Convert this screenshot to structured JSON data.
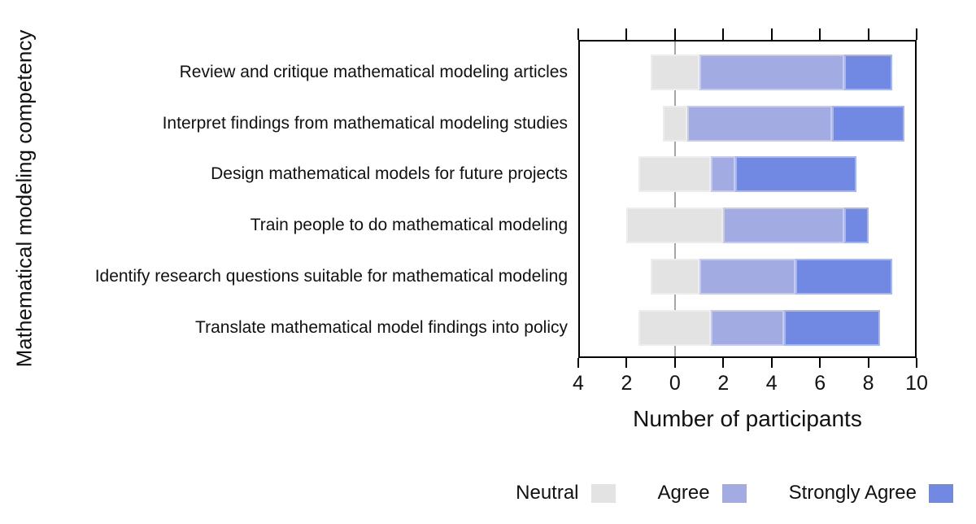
{
  "chart_data": {
    "type": "bar",
    "variant": "diverging-stacked-likert",
    "orientation": "horizontal",
    "xlabel": "Number of participants",
    "ylabel": "Mathematical modeling competency",
    "neutral_centered_on_zero": true,
    "x_axis": {
      "range": [
        -4,
        10
      ],
      "tick_values": [
        -4,
        -2,
        0,
        2,
        4,
        6,
        8,
        10
      ],
      "tick_labels": [
        "4",
        "2",
        "0",
        "2",
        "4",
        "6",
        "8",
        "10"
      ],
      "top_axis_mirrored_unlabeled_ticks": true,
      "grid": "zero-line-only"
    },
    "categories": [
      "Review and critique mathematical modeling articles",
      "Interpret findings from mathematical modeling studies",
      "Design mathematical models for future projects",
      "Train people to do mathematical modeling",
      "Identify research questions suitable for mathematical modeling",
      "Translate mathematical model findings into policy"
    ],
    "series": [
      {
        "name": "Neutral",
        "color": "#e3e3e3",
        "values": [
          2,
          1,
          3,
          4,
          2,
          3
        ]
      },
      {
        "name": "Agree",
        "color": "#a2ace2",
        "values": [
          6,
          6,
          1,
          5,
          4,
          3
        ]
      },
      {
        "name": "Strongly Agree",
        "color": "#7289e4",
        "values": [
          2,
          3,
          5,
          1,
          4,
          4
        ]
      }
    ],
    "legend": {
      "position": "bottom-right",
      "order": [
        "Neutral",
        "Agree",
        "Strongly Agree"
      ]
    }
  },
  "colors": {
    "axis": "#000000",
    "zero_line": "#a6a6a6",
    "background": "#ffffff",
    "text": "#111111"
  }
}
